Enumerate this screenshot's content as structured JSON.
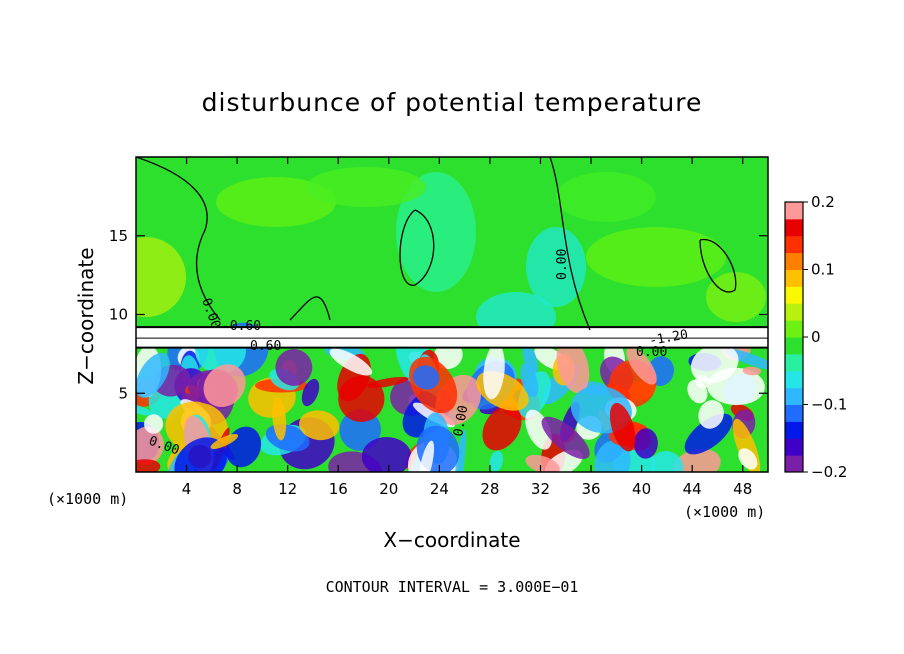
{
  "chart_data": {
    "type": "heatmap",
    "title": "disturbunce of potential temperature",
    "xlabel": "X−coordinate",
    "ylabel": "Z−coordinate",
    "x_unit": "(×1000 m)",
    "x_range": [
      0,
      50
    ],
    "y_range": [
      0,
      20
    ],
    "x_ticks": [
      4,
      8,
      12,
      16,
      20,
      24,
      28,
      32,
      36,
      40,
      44,
      48
    ],
    "y_ticks": [
      5,
      10,
      15
    ],
    "colorbar": {
      "range": [
        -0.2,
        0.2
      ],
      "ticks": [
        -0.2,
        -0.1,
        0,
        0.1,
        0.2
      ],
      "tick_labels": [
        "−0.2",
        "−0.1",
        "0",
        "0.1",
        "0.2"
      ],
      "colors": [
        "#7a1fa8",
        "#3f00c8",
        "#0018e8",
        "#1f6cff",
        "#2fb8ff",
        "#24e6e6",
        "#28f0a0",
        "#2de02d",
        "#6ef012",
        "#b8f010",
        "#f8f800",
        "#ffc000",
        "#ff8000",
        "#ff3000",
        "#e80000",
        "#ff9898"
      ]
    },
    "contour_labels": [
      "0.00",
      "0.60",
      "−0.60",
      "−1.20"
    ],
    "contour_interval_text": "CONTOUR INTERVAL = 3.000E−01",
    "grid": false
  }
}
